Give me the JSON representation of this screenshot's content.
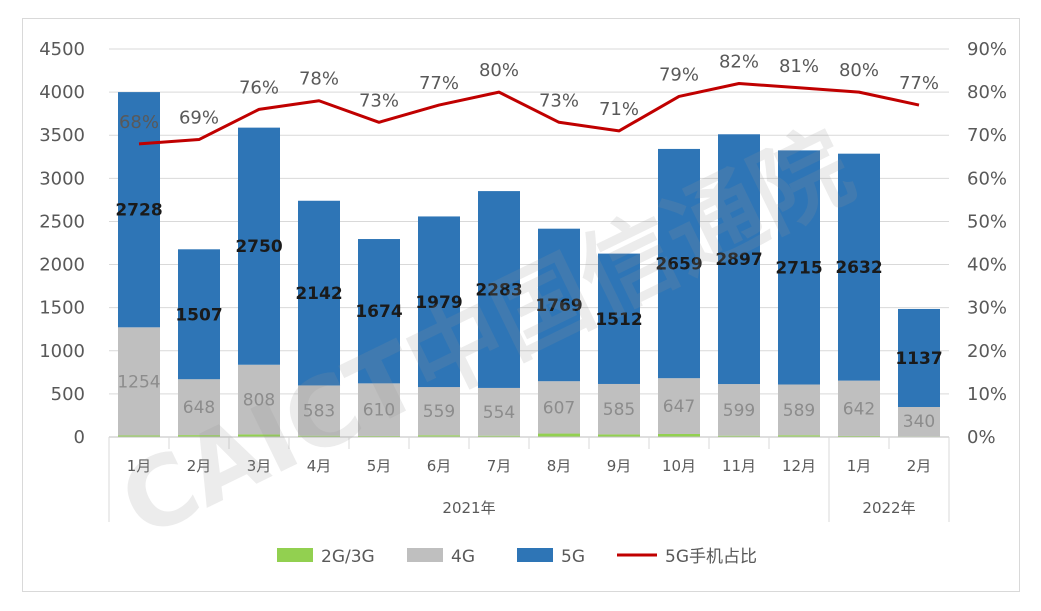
{
  "chart_data": {
    "type": "bar",
    "stacked": true,
    "categories": [
      "1月",
      "2月",
      "3月",
      "4月",
      "5月",
      "6月",
      "7月",
      "8月",
      "9月",
      "10月",
      "11月",
      "12月",
      "1月",
      "2月"
    ],
    "year_groups": [
      {
        "label": "2021年",
        "count": 12
      },
      {
        "label": "2022年",
        "count": 2
      }
    ],
    "series": [
      {
        "name": "2G/3G",
        "color": "#92d050",
        "values": [
          18,
          22,
          30,
          15,
          12,
          20,
          15,
          40,
          30,
          35,
          15,
          20,
          12,
          8
        ]
      },
      {
        "name": "4G",
        "color": "#bfbfbf",
        "values": [
          1254,
          648,
          808,
          583,
          610,
          559,
          554,
          607,
          585,
          647,
          599,
          589,
          642,
          340
        ]
      },
      {
        "name": "5G",
        "color": "#2e75b6",
        "values": [
          2728,
          1507,
          2750,
          2142,
          1674,
          1979,
          2283,
          1769,
          1512,
          2659,
          2897,
          2715,
          2632,
          1137
        ]
      }
    ],
    "line_series": {
      "name": "5G手机占比",
      "color": "#c00000",
      "values": [
        68,
        69,
        76,
        78,
        73,
        77,
        80,
        73,
        71,
        79,
        82,
        81,
        80,
        77
      ],
      "labels": [
        "68%",
        "69%",
        "76%",
        "78%",
        "73%",
        "77%",
        "80%",
        "73%",
        "71%",
        "79%",
        "82%",
        "81%",
        "80%",
        "77%"
      ]
    },
    "data_labels_5g": [
      "2728",
      "1507",
      "2750",
      "2142",
      "1674",
      "1979",
      "2283",
      "1769",
      "1512",
      "2659",
      "2897",
      "2715",
      "2632",
      "1137"
    ],
    "data_labels_4g": [
      "1254",
      "648",
      "808",
      "583",
      "610",
      "559",
      "554",
      "607",
      "585",
      "647",
      "599",
      "589",
      "642",
      "340"
    ],
    "y_left": {
      "min": 0,
      "max": 4500,
      "step": 500,
      "ticks": [
        "0",
        "500",
        "1000",
        "1500",
        "2000",
        "2500",
        "3000",
        "3500",
        "4000",
        "4500"
      ]
    },
    "y_right": {
      "min": 0,
      "max": 90,
      "step": 10,
      "ticks": [
        "0%",
        "10%",
        "20%",
        "30%",
        "40%",
        "50%",
        "60%",
        "70%",
        "80%",
        "90%"
      ]
    },
    "grid": true,
    "legend_position": "bottom",
    "watermark": "CAICT中国信通院"
  }
}
